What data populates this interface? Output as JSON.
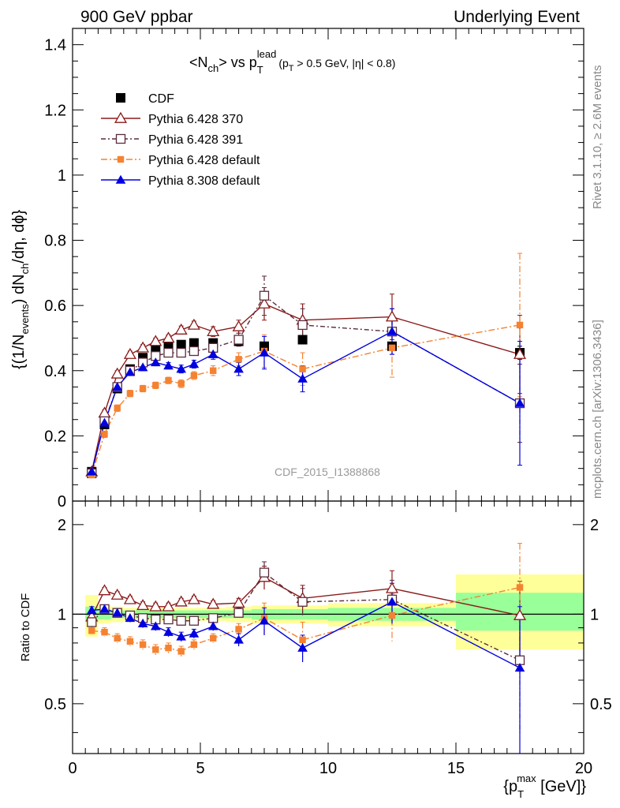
{
  "header": {
    "left": "900 GeV ppbar",
    "right": "Underlying Event"
  },
  "side_labels": {
    "rivet": "Rivet 3.1.10, ≥ 2.6M events",
    "mcplots": "mcplots.cern.ch [arXiv:1306.3436]"
  },
  "chart_data": {
    "type": "scatter",
    "title": {
      "main": "<N",
      "sub1": "ch",
      "mid": "> vs p",
      "sub2": "T",
      "sup2": "lead",
      "cut1": "(p",
      "cut_sub": "T",
      "cut2": " > 0.5 GeV, |η| < 0.8)"
    },
    "watermark": "CDF_2015_I1388868",
    "xlabel": {
      "a": "{p",
      "sub": "T",
      "sup": "max",
      "b": " [GeV]}"
    },
    "ylabel": {
      "a": "{(1/N",
      "sub1": "events",
      "b": ") dN",
      "sub2": "ch",
      "c": "/dη, dϕ}"
    },
    "ratio_ylabel": "Ratio to CDF",
    "xlim": [
      0,
      20
    ],
    "ylim": [
      0,
      1.45
    ],
    "ratio_ylim": [
      0.34,
      2.4
    ],
    "ratio_yscale": "log",
    "xticks": [
      "0",
      "5",
      "10",
      "15",
      "20"
    ],
    "yticks": [
      "0",
      "0.2",
      "0.4",
      "0.6",
      "0.8",
      "1",
      "1.2",
      "1.4"
    ],
    "ratio_yticks": [
      "0.5",
      "1",
      "2"
    ],
    "series": [
      {
        "name": "CDF",
        "color": "#000000",
        "marker": "square-filled",
        "x": [
          0.75,
          1.25,
          1.75,
          2.25,
          2.75,
          3.25,
          3.75,
          4.25,
          4.75,
          5.5,
          6.5,
          7.5,
          9.0,
          12.5,
          17.5
        ],
        "y": [
          0.09,
          0.235,
          0.345,
          0.405,
          0.44,
          0.465,
          0.475,
          0.48,
          0.485,
          0.485,
          0.49,
          0.475,
          0.495,
          0.475,
          0.455
        ],
        "err": [
          0.005,
          0.008,
          0.008,
          0.008,
          0.008,
          0.008,
          0.008,
          0.008,
          0.008,
          0.008,
          0.008,
          0.008,
          0.01,
          0.012,
          0.02
        ],
        "ratio": [
          1,
          1,
          1,
          1,
          1,
          1,
          1,
          1,
          1,
          1,
          1,
          1,
          1,
          1,
          1
        ]
      },
      {
        "name": "Pythia 6.428 370",
        "color": "#8b1a1a",
        "marker": "triangle-open",
        "dash": "",
        "x": [
          0.75,
          1.25,
          1.75,
          2.25,
          2.75,
          3.25,
          3.75,
          4.25,
          4.75,
          5.5,
          6.5,
          7.5,
          9.0,
          12.5,
          17.5
        ],
        "y": [
          0.09,
          0.27,
          0.39,
          0.45,
          0.47,
          0.49,
          0.5,
          0.525,
          0.54,
          0.52,
          0.535,
          0.605,
          0.555,
          0.565,
          0.45
        ],
        "err": [
          0.005,
          0.01,
          0.01,
          0.01,
          0.01,
          0.01,
          0.01,
          0.012,
          0.012,
          0.015,
          0.02,
          0.05,
          0.05,
          0.07,
          0.12
        ],
        "ratio": [
          0.98,
          1.2,
          1.16,
          1.12,
          1.07,
          1.06,
          1.06,
          1.1,
          1.12,
          1.08,
          1.09,
          1.33,
          1.13,
          1.22,
          0.99
        ],
        "ratio_err": [
          0.03,
          0.03,
          0.03,
          0.03,
          0.03,
          0.03,
          0.03,
          0.03,
          0.03,
          0.03,
          0.04,
          0.12,
          0.12,
          0.18,
          0.3
        ]
      },
      {
        "name": "Pythia 6.428 391",
        "color": "#5b2c3c",
        "marker": "square-open",
        "dash": "6,3,2,3",
        "x": [
          0.75,
          1.25,
          1.75,
          2.25,
          2.75,
          3.25,
          3.75,
          4.25,
          4.75,
          5.5,
          6.5,
          7.5,
          9.0,
          12.5,
          17.5
        ],
        "y": [
          0.085,
          0.245,
          0.35,
          0.4,
          0.425,
          0.445,
          0.455,
          0.455,
          0.46,
          0.47,
          0.495,
          0.63,
          0.54,
          0.52,
          0.3
        ],
        "err": [
          0.005,
          0.01,
          0.01,
          0.01,
          0.01,
          0.01,
          0.01,
          0.012,
          0.012,
          0.015,
          0.02,
          0.06,
          0.05,
          0.07,
          0.12
        ],
        "ratio": [
          0.94,
          1.04,
          1.01,
          0.99,
          0.97,
          0.96,
          0.96,
          0.95,
          0.95,
          0.97,
          1.01,
          1.38,
          1.1,
          1.12,
          0.7
        ],
        "ratio_err": [
          0.03,
          0.03,
          0.03,
          0.03,
          0.03,
          0.03,
          0.03,
          0.03,
          0.03,
          0.03,
          0.04,
          0.12,
          0.12,
          0.18,
          0.3
        ]
      },
      {
        "name": "Pythia 6.428 default",
        "color": "#f58231",
        "marker": "square-filled-small",
        "dash": "8,3,2,3",
        "x": [
          0.75,
          1.25,
          1.75,
          2.25,
          2.75,
          3.25,
          3.75,
          4.25,
          4.75,
          5.5,
          6.5,
          7.5,
          9.0,
          12.5,
          17.5
        ],
        "y": [
          0.08,
          0.205,
          0.285,
          0.33,
          0.345,
          0.355,
          0.37,
          0.36,
          0.385,
          0.4,
          0.435,
          0.46,
          0.405,
          0.47,
          0.54
        ],
        "err": [
          0.005,
          0.01,
          0.01,
          0.01,
          0.01,
          0.01,
          0.01,
          0.012,
          0.012,
          0.015,
          0.02,
          0.05,
          0.05,
          0.09,
          0.22
        ],
        "ratio": [
          0.88,
          0.87,
          0.83,
          0.81,
          0.79,
          0.76,
          0.77,
          0.75,
          0.79,
          0.83,
          0.89,
          0.97,
          0.82,
          0.99,
          1.23
        ],
        "ratio_err": [
          0.03,
          0.03,
          0.03,
          0.03,
          0.03,
          0.03,
          0.03,
          0.03,
          0.03,
          0.03,
          0.04,
          0.12,
          0.12,
          0.18,
          0.5
        ]
      },
      {
        "name": "Pythia 8.308 default",
        "color": "#0000e0",
        "marker": "triangle-filled",
        "dash": "",
        "x": [
          0.75,
          1.25,
          1.75,
          2.25,
          2.75,
          3.25,
          3.75,
          4.25,
          4.75,
          5.5,
          6.5,
          7.5,
          9.0,
          12.5,
          17.5
        ],
        "y": [
          0.09,
          0.24,
          0.35,
          0.395,
          0.41,
          0.425,
          0.415,
          0.405,
          0.42,
          0.45,
          0.405,
          0.455,
          0.375,
          0.52,
          0.3
        ],
        "err": [
          0.005,
          0.01,
          0.01,
          0.01,
          0.01,
          0.01,
          0.01,
          0.012,
          0.012,
          0.015,
          0.02,
          0.05,
          0.04,
          0.07,
          0.19
        ],
        "ratio": [
          1.03,
          1.04,
          1.01,
          0.97,
          0.93,
          0.91,
          0.87,
          0.84,
          0.86,
          0.91,
          0.82,
          0.95,
          0.77,
          1.1,
          0.66
        ],
        "ratio_err": [
          0.03,
          0.03,
          0.03,
          0.03,
          0.03,
          0.03,
          0.03,
          0.03,
          0.03,
          0.03,
          0.04,
          0.1,
          0.08,
          0.17,
          0.4
        ]
      }
    ],
    "uncertainty_bands": {
      "colors": {
        "outer": "#ffff99",
        "inner": "#99ff99"
      },
      "bins": [
        {
          "x": [
            0.5,
            1.0
          ],
          "outer": [
            0.84,
            1.16
          ],
          "inner": [
            0.94,
            1.06
          ]
        },
        {
          "x": [
            1.0,
            1.5
          ],
          "outer": [
            0.93,
            1.07
          ],
          "inner": [
            0.96,
            1.04
          ]
        },
        {
          "x": [
            1.5,
            2.0
          ],
          "outer": [
            0.94,
            1.06
          ],
          "inner": [
            0.97,
            1.03
          ]
        },
        {
          "x": [
            2.0,
            2.5
          ],
          "outer": [
            0.95,
            1.05
          ],
          "inner": [
            0.97,
            1.03
          ]
        },
        {
          "x": [
            2.5,
            3.0
          ],
          "outer": [
            0.95,
            1.05
          ],
          "inner": [
            0.97,
            1.03
          ]
        },
        {
          "x": [
            3.0,
            3.5
          ],
          "outer": [
            0.95,
            1.05
          ],
          "inner": [
            0.97,
            1.03
          ]
        },
        {
          "x": [
            3.5,
            4.0
          ],
          "outer": [
            0.95,
            1.05
          ],
          "inner": [
            0.97,
            1.03
          ]
        },
        {
          "x": [
            4.0,
            4.5
          ],
          "outer": [
            0.95,
            1.05
          ],
          "inner": [
            0.97,
            1.03
          ]
        },
        {
          "x": [
            4.5,
            5.0
          ],
          "outer": [
            0.95,
            1.05
          ],
          "inner": [
            0.97,
            1.03
          ]
        },
        {
          "x": [
            5.0,
            6.0
          ],
          "outer": [
            0.95,
            1.05
          ],
          "inner": [
            0.97,
            1.03
          ]
        },
        {
          "x": [
            6.0,
            7.0
          ],
          "outer": [
            0.94,
            1.06
          ],
          "inner": [
            0.97,
            1.03
          ]
        },
        {
          "x": [
            7.0,
            8.0
          ],
          "outer": [
            0.93,
            1.07
          ],
          "inner": [
            0.96,
            1.04
          ]
        },
        {
          "x": [
            8.0,
            10.0
          ],
          "outer": [
            0.93,
            1.07
          ],
          "inner": [
            0.96,
            1.04
          ]
        },
        {
          "x": [
            10.0,
            15.0
          ],
          "outer": [
            0.91,
            1.09
          ],
          "inner": [
            0.95,
            1.05
          ]
        },
        {
          "x": [
            15.0,
            20.0
          ],
          "outer": [
            0.76,
            1.36
          ],
          "inner": [
            0.88,
            1.18
          ]
        }
      ]
    },
    "legend_position": "top-left"
  }
}
